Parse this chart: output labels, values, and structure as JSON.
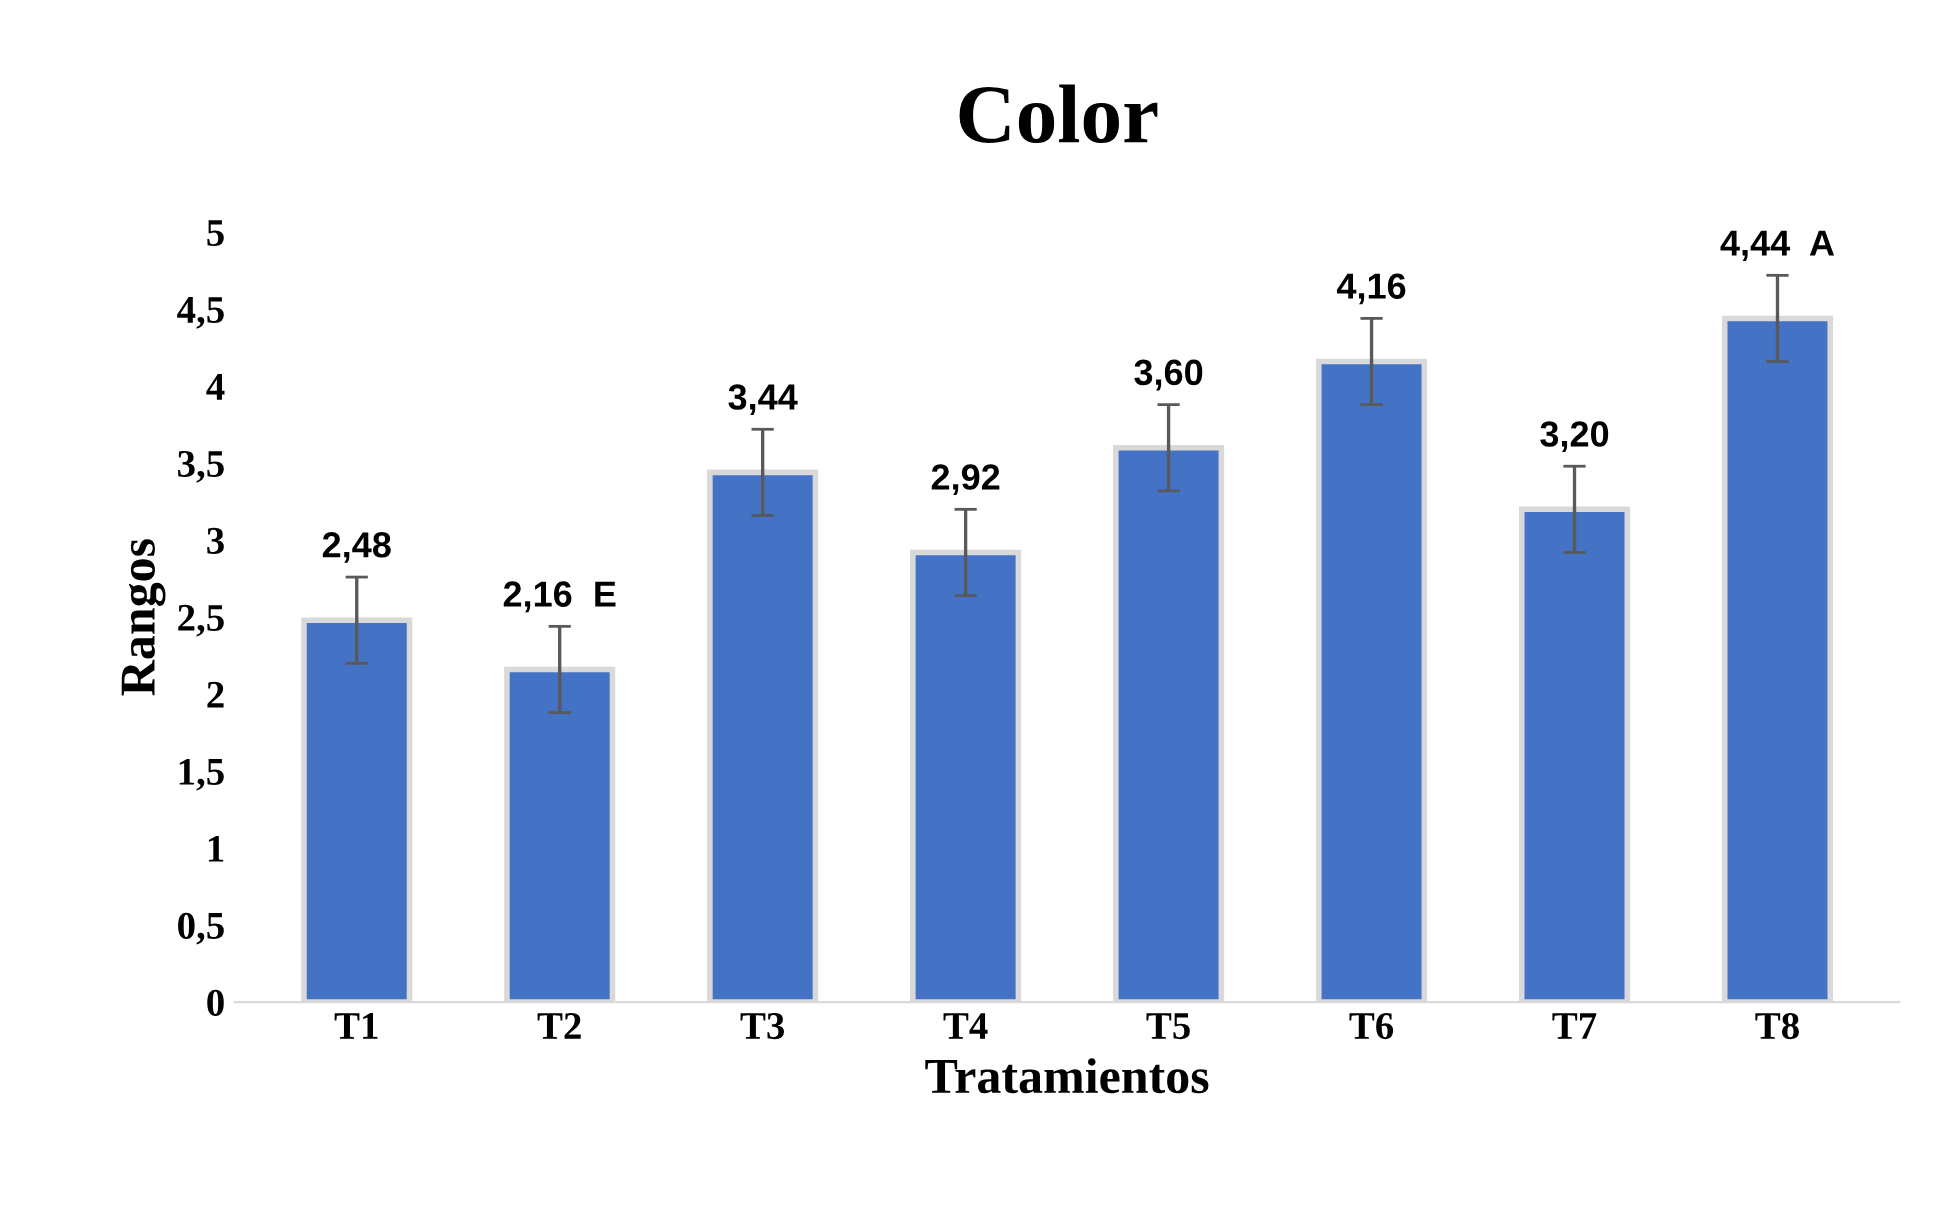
{
  "chart_data": {
    "type": "bar",
    "title": "Color",
    "xlabel": "Tratamientos",
    "ylabel": "Rangos",
    "categories": [
      "T1",
      "T2",
      "T3",
      "T4",
      "T5",
      "T6",
      "T7",
      "T8"
    ],
    "values": [
      2.48,
      2.16,
      3.44,
      2.92,
      3.6,
      4.16,
      3.2,
      4.44
    ],
    "errors": [
      0.28,
      0.28,
      0.28,
      0.28,
      0.28,
      0.28,
      0.28,
      0.28
    ],
    "value_labels": [
      "2,48",
      "2,16  E",
      "3,44",
      "2,92",
      "3,60",
      "4,16",
      "3,20",
      "4,44  A"
    ],
    "color": "#4472c4",
    "ylim": [
      0,
      5
    ],
    "yticks": [
      0,
      {
        "value": 0.5,
        "label": "0,5"
      },
      1,
      {
        "value": 1.5,
        "label": "1,5"
      },
      2,
      {
        "value": 2.5,
        "label": "2,5"
      },
      3,
      {
        "value": 3.5,
        "label": "3,5"
      },
      4,
      {
        "value": 4.5,
        "label": "4,5"
      },
      5
    ],
    "grid": false,
    "legend": false
  }
}
